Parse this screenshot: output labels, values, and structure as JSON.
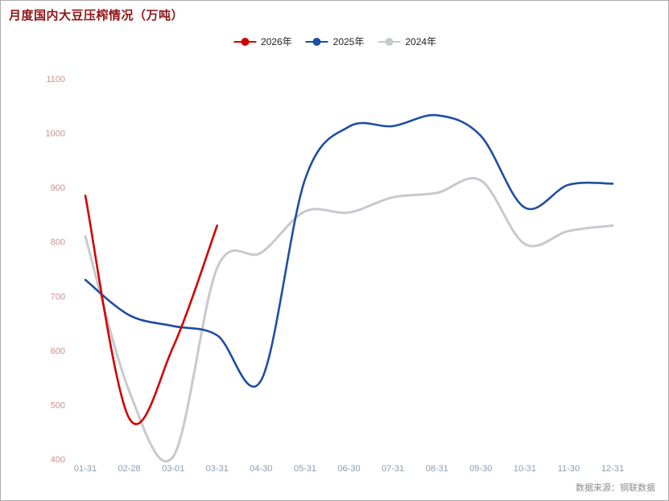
{
  "title": "月度国内大豆压榨情况（万吨）",
  "source_note": "数据来源：钢联数据",
  "chart_data": {
    "type": "line",
    "title": "月度国内大豆压榨情况（万吨）",
    "categories": [
      "01-31",
      "02-28",
      "03-01",
      "03-31",
      "04-30",
      "05-31",
      "06-30",
      "07-31",
      "08-31",
      "09-30",
      "10-31",
      "11-30",
      "12-31"
    ],
    "series": [
      {
        "name": "2026年",
        "color": "#d40000",
        "values": [
          885,
          475,
          607,
          830,
          null,
          null,
          null,
          null,
          null,
          null,
          null,
          null,
          null
        ]
      },
      {
        "name": "2025年",
        "color": "#1f4ea1",
        "values": [
          730,
          665,
          645,
          628,
          545,
          915,
          1012,
          1013,
          1033,
          995,
          863,
          905,
          907
        ]
      },
      {
        "name": "2024年",
        "color": "#c6c9ce",
        "values": [
          810,
          525,
          405,
          752,
          780,
          856,
          854,
          882,
          890,
          913,
          796,
          820,
          830
        ]
      }
    ],
    "ylim": [
      400,
      1100
    ],
    "yticks": [
      400,
      500,
      600,
      700,
      800,
      900,
      1000,
      1100
    ],
    "legend_position": "top",
    "grid": false
  },
  "colors": {
    "title": "#8e1515",
    "y_tick_labels": "#cf8d8d",
    "x_tick_labels": "#8a9bb0",
    "legend_text": "#222222",
    "source_text": "#8c8c8c",
    "background": "#ffffff"
  }
}
